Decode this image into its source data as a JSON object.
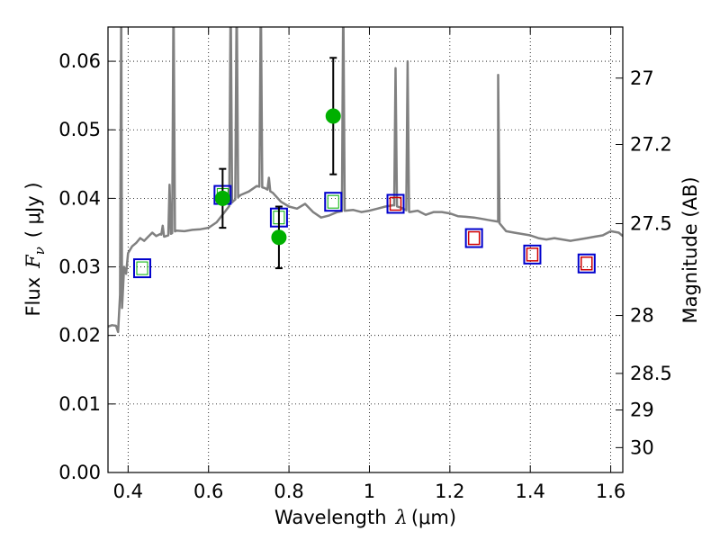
{
  "chart_data": {
    "type": "scatter",
    "xlabel": {
      "prefix": "Wavelength",
      "symbol": "λ",
      "unit": "(μm)"
    },
    "ylabel": {
      "prefix": "Flux",
      "symbol": "F",
      "sub": "ν",
      "unit": "( μJy )"
    },
    "y2label": "Magnitude (AB)",
    "xlim": [
      0.35,
      1.63
    ],
    "ylim": [
      0.0,
      0.065
    ],
    "grid": true,
    "x_ticks": [
      0.4,
      0.6,
      0.8,
      1.0,
      1.2,
      1.4,
      1.6
    ],
    "x_tick_labels": [
      "0.4",
      "0.6",
      "0.8",
      "1",
      "1.2",
      "1.4",
      "1.6"
    ],
    "y_ticks": [
      0.0,
      0.01,
      0.02,
      0.03,
      0.04,
      0.05,
      0.06
    ],
    "y_tick_labels": [
      "0.00",
      "0.01",
      "0.02",
      "0.03",
      "0.04",
      "0.05",
      "0.06"
    ],
    "y2_ticks": [
      27.0,
      27.2,
      27.5,
      28.0,
      28.5,
      29.0,
      30.0
    ],
    "y2_tick_labels": [
      "27",
      "27.2",
      "27.5",
      "28",
      "28.5",
      "29",
      "30"
    ],
    "colors": {
      "model": "#808080",
      "observed": "#00b000",
      "model_box": "#0000cc",
      "model_box_red": "#d00000",
      "errorbar": "#000000"
    },
    "model_spectrum": {
      "name": "",
      "x": [
        0.35,
        0.36,
        0.37,
        0.375,
        0.38,
        0.385,
        0.39,
        0.395,
        0.4,
        0.41,
        0.42,
        0.43,
        0.44,
        0.45,
        0.46,
        0.47,
        0.48,
        0.49,
        0.5,
        0.52,
        0.54,
        0.56,
        0.58,
        0.6,
        0.62,
        0.64,
        0.66,
        0.68,
        0.7,
        0.72,
        0.74,
        0.76,
        0.78,
        0.8,
        0.82,
        0.84,
        0.86,
        0.88,
        0.9,
        0.92,
        0.94,
        0.96,
        0.98,
        1.0,
        1.02,
        1.04,
        1.06,
        1.08,
        1.1,
        1.12,
        1.14,
        1.16,
        1.18,
        1.2,
        1.22,
        1.24,
        1.26,
        1.28,
        1.3,
        1.32,
        1.34,
        1.36,
        1.38,
        1.4,
        1.42,
        1.44,
        1.46,
        1.48,
        1.5,
        1.52,
        1.54,
        1.56,
        1.58,
        1.6,
        1.62,
        1.63
      ],
      "y": [
        0.0213,
        0.0215,
        0.0214,
        0.0205,
        0.026,
        0.024,
        0.03,
        0.029,
        0.032,
        0.033,
        0.0335,
        0.0342,
        0.0338,
        0.0344,
        0.035,
        0.0345,
        0.0348,
        0.0344,
        0.0346,
        0.0353,
        0.0352,
        0.0354,
        0.0355,
        0.0357,
        0.0365,
        0.038,
        0.0395,
        0.0405,
        0.041,
        0.0418,
        0.0415,
        0.0408,
        0.0395,
        0.0388,
        0.0385,
        0.0392,
        0.038,
        0.0372,
        0.0375,
        0.038,
        0.0382,
        0.0383,
        0.038,
        0.0382,
        0.0385,
        0.0388,
        0.039,
        0.0386,
        0.038,
        0.0382,
        0.0376,
        0.038,
        0.038,
        0.0378,
        0.0374,
        0.0373,
        0.0372,
        0.037,
        0.0368,
        0.0366,
        0.0352,
        0.035,
        0.0348,
        0.0346,
        0.0342,
        0.034,
        0.0342,
        0.034,
        0.0338,
        0.034,
        0.0342,
        0.0344,
        0.0346,
        0.0352,
        0.035,
        0.0345
      ],
      "emission_lines": [
        {
          "x": 0.383,
          "peak": 0.07
        },
        {
          "x": 0.435,
          "peak": 0.034
        },
        {
          "x": 0.486,
          "peak": 0.036
        },
        {
          "x": 0.503,
          "peak": 0.042
        },
        {
          "x": 0.513,
          "peak": 0.07
        },
        {
          "x": 0.655,
          "peak": 0.07
        },
        {
          "x": 0.67,
          "peak": 0.07
        },
        {
          "x": 0.73,
          "peak": 0.07
        },
        {
          "x": 0.75,
          "peak": 0.043
        },
        {
          "x": 0.935,
          "peak": 0.07
        },
        {
          "x": 1.065,
          "peak": 0.059
        },
        {
          "x": 1.095,
          "peak": 0.06
        },
        {
          "x": 1.32,
          "peak": 0.058
        }
      ]
    },
    "observed": {
      "name": "",
      "x": [
        0.435,
        0.635,
        0.775,
        0.91
      ],
      "y": [
        0.03,
        0.04,
        0.0343,
        0.052
      ],
      "yerr": [
        0.0,
        0.0043,
        0.0045,
        0.0085
      ]
    },
    "model_photometry": {
      "name": "",
      "x": [
        0.435,
        0.635,
        0.775,
        0.91,
        1.065,
        1.26,
        1.405,
        1.54
      ],
      "y": [
        0.0298,
        0.0405,
        0.0372,
        0.0395,
        0.0392,
        0.0342,
        0.0318,
        0.0305
      ],
      "red_inner": [
        false,
        false,
        false,
        false,
        true,
        true,
        true,
        true
      ]
    }
  }
}
